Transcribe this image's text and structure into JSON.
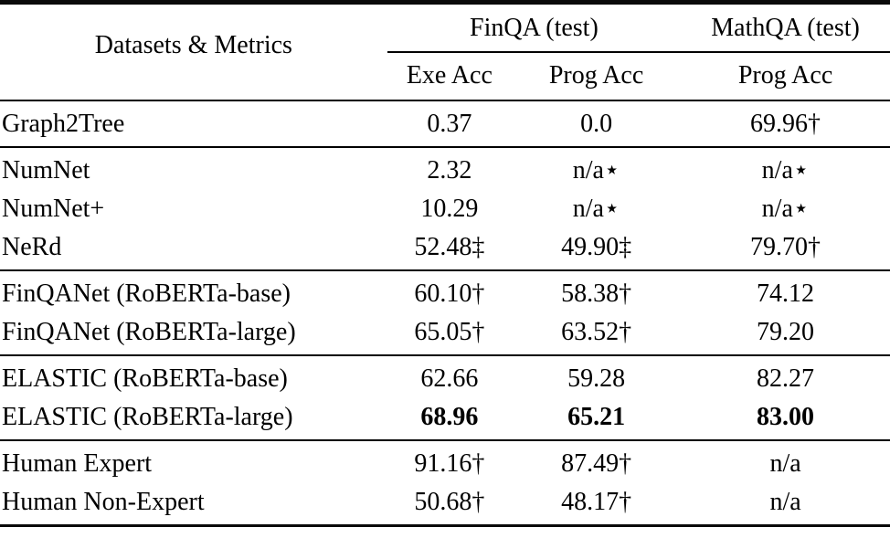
{
  "table": {
    "corner_label": "Datasets & Metrics",
    "groups": {
      "finqa": "FinQA (test)",
      "mathqa": "MathQA (test)"
    },
    "sub_headers": {
      "exe_acc": "Exe Acc",
      "prog_acc_finqa": "Prog Acc",
      "prog_acc_mathqa": "Prog Acc"
    },
    "sections": [
      {
        "rows": [
          {
            "label": "Graph2Tree",
            "values": [
              "0.37",
              "0.0",
              "69.96†"
            ]
          }
        ]
      },
      {
        "rows": [
          {
            "label": "NumNet",
            "values": [
              "2.32",
              "n/a⋆",
              "n/a⋆"
            ]
          },
          {
            "label": "NumNet+",
            "values": [
              "10.29",
              "n/a⋆",
              "n/a⋆"
            ]
          },
          {
            "label": "NeRd",
            "values": [
              "52.48‡",
              "49.90‡",
              "79.70†"
            ]
          }
        ]
      },
      {
        "rows": [
          {
            "label": "FinQANet (RoBERTa-base)",
            "values": [
              "60.10†",
              "58.38†",
              "74.12"
            ]
          },
          {
            "label": "FinQANet (RoBERTa-large)",
            "values": [
              "65.05†",
              "63.52†",
              "79.20"
            ]
          }
        ]
      },
      {
        "rows": [
          {
            "label": "ELASTIC (RoBERTa-base)",
            "values": [
              "62.66",
              "59.28",
              "82.27"
            ]
          },
          {
            "label": "ELASTIC (RoBERTa-large)",
            "values": [
              "68.96",
              "65.21",
              "83.00"
            ],
            "bold_values": true
          }
        ]
      },
      {
        "rows": [
          {
            "label": "Human Expert",
            "values": [
              "91.16†",
              "87.49†",
              "n/a"
            ]
          },
          {
            "label": "Human Non-Expert",
            "values": [
              "50.68†",
              "48.17†",
              "n/a"
            ]
          }
        ]
      }
    ],
    "colors": {
      "text": "#000000",
      "background": "#ffffff",
      "rule": "#000000"
    }
  }
}
